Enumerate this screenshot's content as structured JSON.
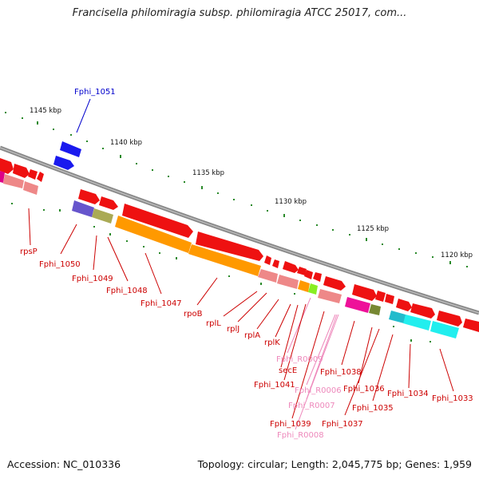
{
  "title": "Francisella philomiragia subsp. philomiragia ATCC 25017, com...",
  "footer": {
    "accession": "Accession: NC_010336",
    "summary": "Topology: circular; Length: 2,045,775 bp; Genes: 1,959"
  },
  "colors": {
    "gene": "#ee1111",
    "gene_light": "#ee8888",
    "ruler": "#999999",
    "tick": "#2a8a2a",
    "label": "#cc0000",
    "rna_label": "#ee88bb",
    "selected": "#0000cc"
  },
  "ruler_labels": [
    {
      "id": "t1145",
      "text": "1145 kbp"
    },
    {
      "id": "t1140",
      "text": "1140 kbp"
    },
    {
      "id": "t1135",
      "text": "1135 kbp"
    },
    {
      "id": "t1130",
      "text": "1130 kbp"
    },
    {
      "id": "t1125",
      "text": "1125 kbp"
    },
    {
      "id": "t1120",
      "text": "1120 kbp"
    }
  ],
  "genes": [
    {
      "name": "Fphi_1051",
      "kind": "selected"
    },
    {
      "name": "rpsP",
      "kind": "gene"
    },
    {
      "name": "Fphi_1050",
      "kind": "gene"
    },
    {
      "name": "Fphi_1049",
      "kind": "gene"
    },
    {
      "name": "Fphi_1048",
      "kind": "gene"
    },
    {
      "name": "Fphi_1047",
      "kind": "gene"
    },
    {
      "name": "rpoB",
      "kind": "gene"
    },
    {
      "name": "rplL",
      "kind": "gene"
    },
    {
      "name": "rplJ",
      "kind": "gene"
    },
    {
      "name": "rplA",
      "kind": "gene"
    },
    {
      "name": "rplK",
      "kind": "gene"
    },
    {
      "name": "Fphi_R0009",
      "kind": "rna"
    },
    {
      "name": "secE",
      "kind": "gene"
    },
    {
      "name": "Fphi_1041",
      "kind": "gene"
    },
    {
      "name": "Fphi_R0006",
      "kind": "rna"
    },
    {
      "name": "Fphi_R0007",
      "kind": "rna"
    },
    {
      "name": "Fphi_1039",
      "kind": "gene"
    },
    {
      "name": "Fphi_R0008",
      "kind": "rna"
    },
    {
      "name": "Fphi_1038",
      "kind": "gene"
    },
    {
      "name": "Fphi_1036",
      "kind": "gene"
    },
    {
      "name": "Fphi_1037",
      "kind": "gene"
    },
    {
      "name": "Fphi_1035",
      "kind": "gene"
    },
    {
      "name": "Fphi_1034",
      "kind": "gene"
    },
    {
      "name": "Fphi_1033",
      "kind": "gene"
    }
  ]
}
